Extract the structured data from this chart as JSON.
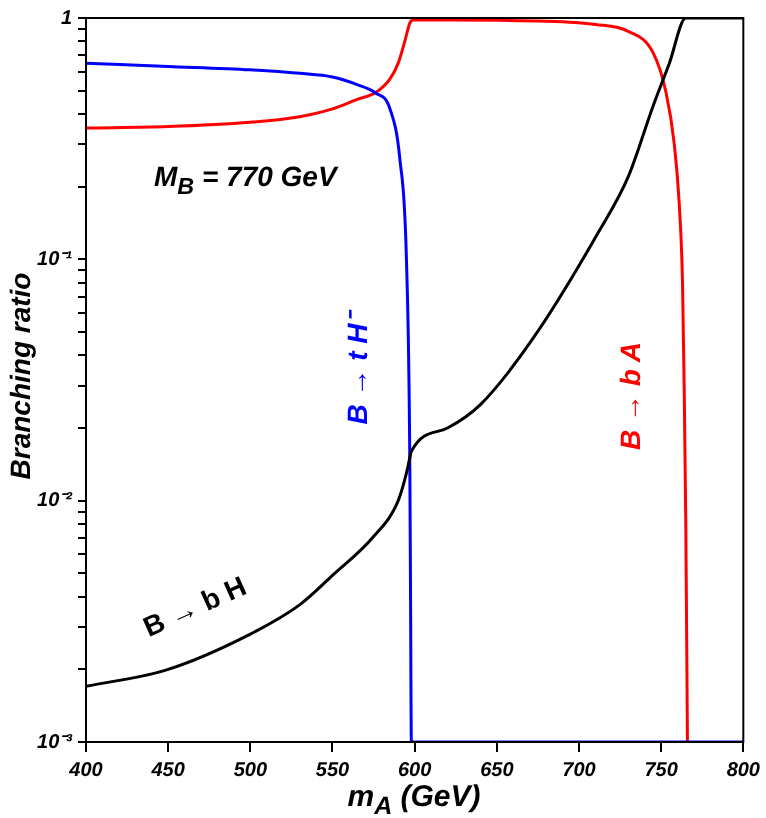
{
  "chart_data": {
    "type": "line",
    "xlabel": "m$_{A}$ (GeV)",
    "ylabel": "Branching ratio",
    "log": "y",
    "grid": false,
    "legend": false,
    "marker": "none",
    "line_style": "solid",
    "annotations": [
      "M$_{B}$ = 770 GeV"
    ],
    "xlim": [
      400,
      800
    ],
    "xticks": [
      400,
      450,
      500,
      550,
      600,
      650,
      700,
      750,
      800
    ],
    "ylim": [
      0.001,
      1
    ],
    "yticks": [
      {
        "value": 0.001,
        "label": "10⁻³"
      },
      {
        "value": 0.002,
        "label": null
      },
      {
        "value": 0.003,
        "label": null
      },
      {
        "value": 0.004,
        "label": null
      },
      {
        "value": 0.005,
        "label": null
      },
      {
        "value": 0.006,
        "label": null
      },
      {
        "value": 0.007,
        "label": null
      },
      {
        "value": 0.008,
        "label": null
      },
      {
        "value": 0.009,
        "label": null
      },
      {
        "value": 0.01,
        "label": "10⁻²"
      },
      {
        "value": 0.02,
        "label": null
      },
      {
        "value": 0.03,
        "label": null
      },
      {
        "value": 0.04,
        "label": null
      },
      {
        "value": 0.05,
        "label": null
      },
      {
        "value": 0.06,
        "label": null
      },
      {
        "value": 0.07,
        "label": null
      },
      {
        "value": 0.08,
        "label": null
      },
      {
        "value": 0.09,
        "label": null
      },
      {
        "value": 0.1,
        "label": "10⁻¹"
      },
      {
        "value": 0.2,
        "label": null
      },
      {
        "value": 0.3,
        "label": null
      },
      {
        "value": 0.4,
        "label": null
      },
      {
        "value": 0.5,
        "label": null
      },
      {
        "value": 0.6,
        "label": null
      },
      {
        "value": 0.7,
        "label": null
      },
      {
        "value": 0.8,
        "label": null
      },
      {
        "value": 0.9,
        "label": null
      },
      {
        "value": 1,
        "label": "1"
      }
    ],
    "series": [
      {
        "name": "B → b H",
        "color": "#000000",
        "x": [
          400,
          450,
          500,
          530,
          550,
          575,
          590,
          595,
          597,
          598,
          620,
          640,
          672,
          712,
          730,
          745,
          755,
          765,
          800
        ],
        "values": [
          0.0017,
          0.002,
          0.0028,
          0.0037,
          0.0049,
          0.0071,
          0.01,
          0.013,
          0.015,
          0.016,
          0.02,
          0.025,
          0.047,
          0.13,
          0.22,
          0.43,
          0.65,
          1,
          1
        ]
      },
      {
        "name": "B → t H⁻",
        "color": "#0000ff",
        "x": [
          400,
          450,
          500,
          530,
          550,
          565,
          576,
          585,
          591,
          595,
          597,
          597.5,
          598,
          700,
          800
        ],
        "values": [
          0.65,
          0.63,
          0.61,
          0.59,
          0.57,
          0.53,
          0.49,
          0.42,
          0.26,
          0.1,
          0.016,
          0.004,
          0.001,
          0.001,
          0.001
        ]
      },
      {
        "name": "B → b A",
        "color": "#ff0000",
        "x": [
          400,
          450,
          500,
          530,
          550,
          565,
          576,
          585,
          590,
          594,
          597,
          599,
          620,
          680,
          710,
          730,
          745,
          753,
          758,
          761,
          763,
          764,
          765,
          766
        ],
        "values": [
          0.35,
          0.355,
          0.37,
          0.39,
          0.42,
          0.46,
          0.49,
          0.56,
          0.65,
          0.8,
          0.95,
          0.98,
          0.98,
          0.97,
          0.94,
          0.88,
          0.72,
          0.49,
          0.3,
          0.17,
          0.08,
          0.03,
          0.008,
          0.001
        ]
      }
    ]
  }
}
